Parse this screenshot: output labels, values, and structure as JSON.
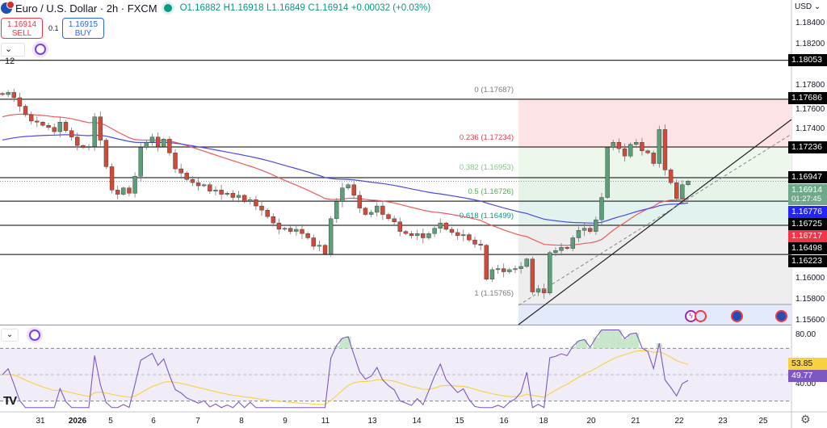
{
  "header": {
    "symbol": "Euro / U.S. Dollar",
    "interval": "2h",
    "exchange": "FXCM",
    "open": "O1.16882",
    "high": "H1.16918",
    "low": "L1.16849",
    "close": "C1.16914",
    "change": "+0.00032 (+0.03%)",
    "market_status_color": "#089981"
  },
  "trade": {
    "sell_price": "1.16914",
    "sell_label": "SELL",
    "spread": "0.1",
    "buy_price": "1.16915",
    "buy_label": "BUY"
  },
  "indicators": {
    "count": "12",
    "rsi_collapse": "⌄"
  },
  "price_scale": {
    "currency": "USD",
    "ticks": [
      "1.18400",
      "1.18200",
      "1.17800",
      "1.17600",
      "1.17400",
      "1.16000",
      "1.15800",
      "1.15600"
    ],
    "rsi_ticks": [
      "80.00",
      "40.00"
    ]
  },
  "price_labels": [
    {
      "value": "1.18053",
      "color": "#000000"
    },
    {
      "value": "1.17686",
      "color": "#000000"
    },
    {
      "value": "1.17236",
      "color": "#000000"
    },
    {
      "value": "1.16947",
      "color": "#000000"
    },
    {
      "value": "1.16776",
      "color": "#2424ff"
    },
    {
      "value": "1.16725",
      "color": "#000000"
    },
    {
      "value": "1.16717",
      "color": "#f23645"
    },
    {
      "value": "1.16498",
      "color": "#000000"
    },
    {
      "value": "1.16223",
      "color": "#000000"
    }
  ],
  "last_price": {
    "value": "1.16914",
    "countdown": "01:27:45",
    "color": "#6fa88a"
  },
  "rsi_labels": {
    "signal": "53.85",
    "rsi": "49.77",
    "signal_color": "#f7d23e",
    "rsi_color": "#7e57c2"
  },
  "fib": [
    {
      "label": "0 (1.17687)",
      "price": 1.17687,
      "color": "#787b86"
    },
    {
      "label": "0.236 (1.17234)",
      "price": 1.17234,
      "color": "#f23645"
    },
    {
      "label": "0.382 (1.16953)",
      "price": 1.16953,
      "color": "#81c784"
    },
    {
      "label": "0.5 (1.16726)",
      "price": 1.16726,
      "color": "#4caf50"
    },
    {
      "label": "0.618 (1.16499)",
      "price": 1.16499,
      "color": "#089981"
    },
    {
      "label": "1 (1.15765)",
      "price": 1.15765,
      "color": "#787b86"
    }
  ],
  "x_axis": [
    "31",
    "2026",
    "5",
    "6",
    "7",
    "8",
    "9",
    "11",
    "13",
    "14",
    "15",
    "16",
    "18",
    "20",
    "21",
    "22",
    "23",
    "25"
  ],
  "chart_data": {
    "type": "candlestick",
    "title": "Euro / U.S. Dollar · 2h · FXCM",
    "ylim": [
      1.155,
      1.185
    ],
    "horizontal_levels": [
      1.18053,
      1.17686,
      1.17236,
      1.16947,
      1.16725,
      1.16498,
      1.16223
    ],
    "closes": [
      1.1773,
      1.1775,
      1.177,
      1.1762,
      1.1754,
      1.1748,
      1.1747,
      1.1744,
      1.1742,
      1.1738,
      1.1747,
      1.1739,
      1.1733,
      1.1725,
      1.1723,
      1.1724,
      1.1752,
      1.173,
      1.1705,
      1.1683,
      1.1679,
      1.1685,
      1.168,
      1.1696,
      1.1723,
      1.1728,
      1.1733,
      1.1724,
      1.1731,
      1.1718,
      1.1703,
      1.1699,
      1.1693,
      1.169,
      1.1687,
      1.1688,
      1.1682,
      1.1683,
      1.1679,
      1.168,
      1.1676,
      1.1678,
      1.1672,
      1.1674,
      1.1668,
      1.1664,
      1.1658,
      1.1652,
      1.1646,
      1.1647,
      1.1644,
      1.1646,
      1.1642,
      1.1638,
      1.163,
      1.1631,
      1.1623,
      1.1656,
      1.1672,
      1.1685,
      1.1688,
      1.1678,
      1.1666,
      1.166,
      1.1662,
      1.1668,
      1.166,
      1.1656,
      1.1653,
      1.1644,
      1.1642,
      1.164,
      1.1642,
      1.1638,
      1.1642,
      1.1647,
      1.1652,
      1.1646,
      1.1643,
      1.164,
      1.1641,
      1.1636,
      1.1632,
      1.1631,
      1.1599,
      1.1608,
      1.1609,
      1.1606,
      1.1608,
      1.1609,
      1.1611,
      1.1618,
      1.1587,
      1.159,
      1.1586,
      1.1624,
      1.1626,
      1.1629,
      1.1628,
      1.1638,
      1.1645,
      1.1647,
      1.1644,
      1.1655,
      1.1676,
      1.1723,
      1.1728,
      1.1722,
      1.1715,
      1.1726,
      1.1728,
      1.172,
      1.1718,
      1.1708,
      1.174,
      1.1702,
      1.169,
      1.1675,
      1.1688,
      1.16914
    ],
    "up_color": "#5b9e78",
    "down_color": "#d04a3a",
    "ma_colors": [
      "#f05a5a",
      "#4a4ae8"
    ]
  }
}
